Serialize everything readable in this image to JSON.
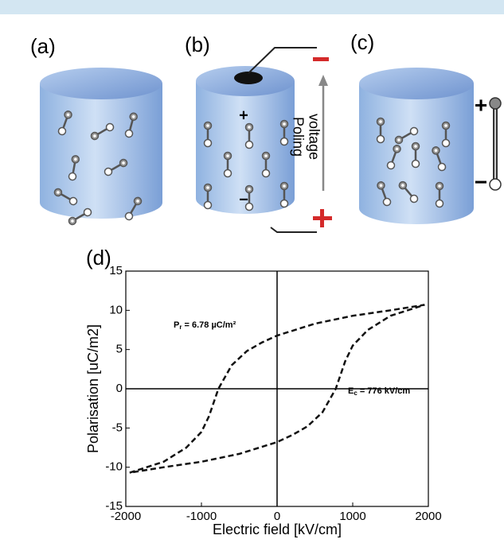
{
  "diagram": {
    "panels": [
      "(a)",
      "(b)",
      "(c)"
    ],
    "poling_label": [
      "Poling",
      "voltage"
    ],
    "signs": [
      "+",
      "−",
      "+",
      "−"
    ]
  },
  "chart_data": {
    "type": "line",
    "panel": "(d)",
    "x_label": "Electric field [kV/cm]",
    "y_label": "Polarisation [uC/m2]",
    "x": [
      -1950,
      -1500,
      -1200,
      -1000,
      -900,
      -776,
      -600,
      -400,
      -200,
      0,
      500,
      1000,
      1500,
      1950,
      1500,
      1200,
      1000,
      900,
      776,
      600,
      400,
      200,
      0,
      -500,
      -1000,
      -1500,
      -1950
    ],
    "values": [
      -10.7,
      -9.3,
      -7.5,
      -5.5,
      -3.5,
      0,
      3,
      4.8,
      5.9,
      6.78,
      8.3,
      9.3,
      10,
      10.7,
      9.3,
      7.5,
      5.5,
      3.5,
      0,
      -3,
      -4.8,
      -5.9,
      -6.8,
      -8.3,
      -9.3,
      -10,
      -10.7
    ],
    "color": "#111111",
    "dashed": true,
    "xlim": [
      -2000,
      2000
    ],
    "xticks": [
      -2000,
      -1000,
      0,
      1000,
      2000
    ],
    "ylim": [
      -15,
      15
    ],
    "yticks": [
      -15,
      -10,
      -5,
      0,
      5,
      10,
      15
    ],
    "annotations": [
      {
        "symbol": "P",
        "subscript": "r",
        "text": " = 6.78 µC/m²"
      },
      {
        "symbol": "E",
        "subscript": "c",
        "text": " = 776 kV/cm"
      }
    ]
  }
}
